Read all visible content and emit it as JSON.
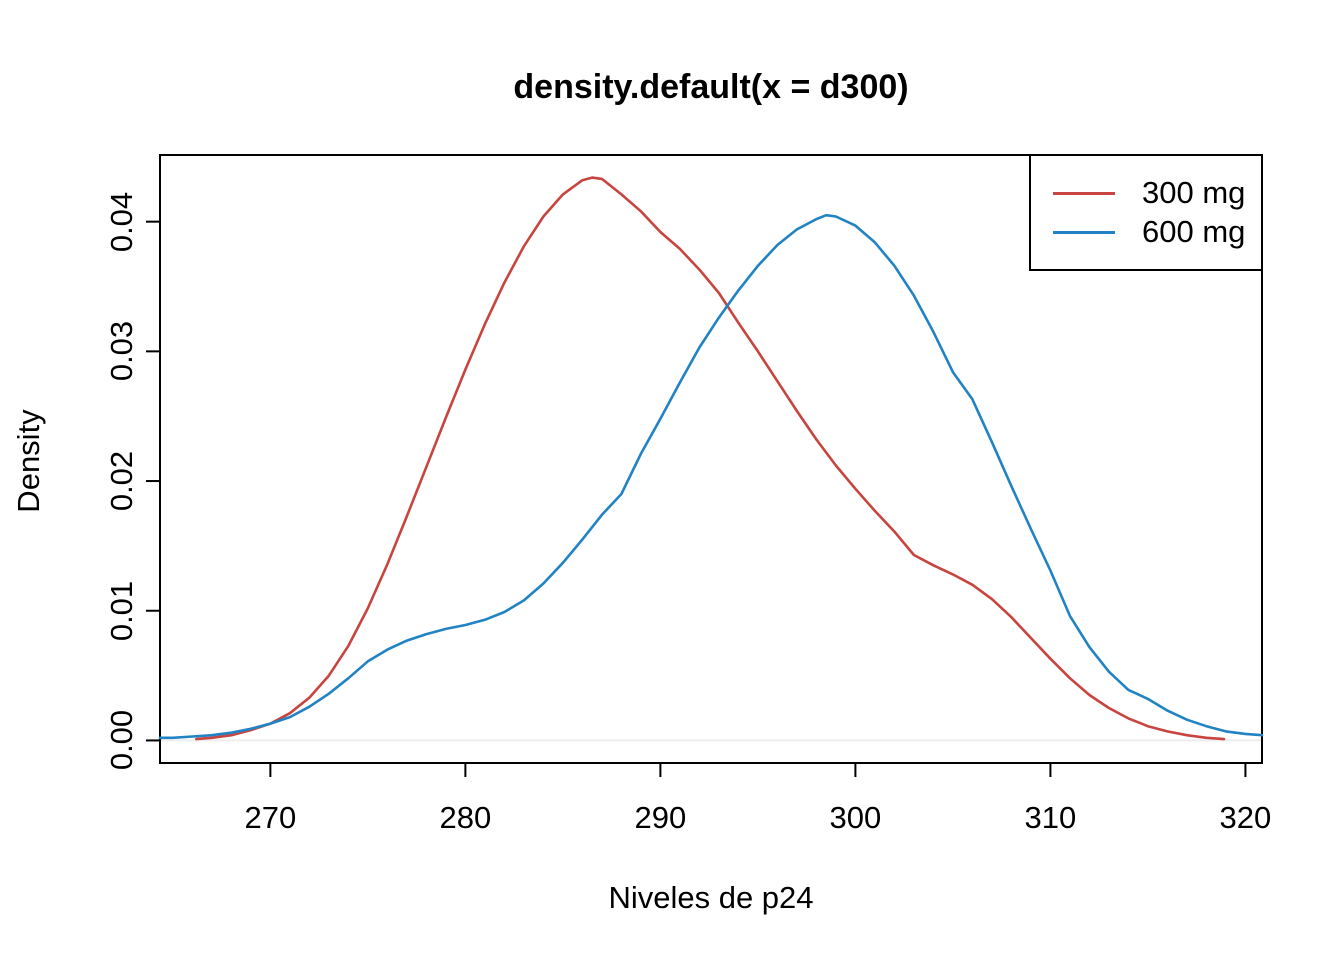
{
  "window": {
    "background": "#ffffff",
    "text_color": "#000000"
  },
  "chart_data": {
    "type": "line",
    "title": "density.default(x = d300)",
    "xlabel": "Niveles de p24",
    "ylabel": "Density",
    "x_ticks": [
      "270",
      "280",
      "290",
      "300",
      "310",
      "320"
    ],
    "x_tick_values": [
      270,
      280,
      290,
      300,
      310,
      320
    ],
    "y_ticks": [
      "0.00",
      "0.01",
      "0.02",
      "0.03",
      "0.04"
    ],
    "y_tick_values": [
      0,
      0.01,
      0.02,
      0.03,
      0.04
    ],
    "xlim": [
      264.34,
      320.85
    ],
    "ylim": [
      -0.00174,
      0.04514
    ],
    "grid": false,
    "axis_color": "#000000",
    "baseline_color": "#eeeeee",
    "legend": {
      "position": "topright",
      "entries": [
        {
          "label": "300 mg",
          "color": "#c8443e"
        },
        {
          "label": "600 mg",
          "color": "#2183c4"
        }
      ]
    },
    "series": [
      {
        "name": "300 mg",
        "color": "#c8443e",
        "x": [
          266.2,
          267,
          268,
          269,
          270,
          271,
          272,
          273,
          274,
          275,
          276,
          277,
          278,
          279,
          280,
          281,
          282,
          283,
          284,
          285,
          286,
          286.5,
          287,
          288,
          289,
          290,
          291,
          292,
          293,
          294,
          295,
          296,
          297,
          298,
          299,
          300,
          301,
          302,
          303,
          304,
          305,
          306,
          307,
          308,
          309,
          310,
          311,
          312,
          313,
          314,
          315,
          316,
          317,
          318,
          318.9
        ],
        "y": [
          0.0001,
          0.0002,
          0.0004,
          0.0008,
          0.0013,
          0.0021,
          0.0033,
          0.005,
          0.0073,
          0.0102,
          0.0136,
          0.0173,
          0.0211,
          0.0249,
          0.0286,
          0.0321,
          0.0353,
          0.0381,
          0.0404,
          0.0421,
          0.0432,
          0.0434,
          0.0433,
          0.0421,
          0.0408,
          0.0392,
          0.0379,
          0.0363,
          0.0345,
          0.0322,
          0.03,
          0.0277,
          0.0254,
          0.0232,
          0.0212,
          0.0194,
          0.0177,
          0.0161,
          0.0143,
          0.0135,
          0.0128,
          0.012,
          0.0109,
          0.0095,
          0.0079,
          0.0063,
          0.0048,
          0.0035,
          0.0025,
          0.0017,
          0.0011,
          0.0007,
          0.0004,
          0.0002,
          0.0001
        ]
      },
      {
        "name": "600 mg",
        "color": "#2183c4",
        "x": [
          264.34,
          265,
          266,
          267,
          268,
          269,
          270,
          271,
          272,
          273,
          274,
          275,
          276,
          277,
          278,
          279,
          280,
          281,
          282,
          283,
          284,
          285,
          286,
          287,
          288,
          289,
          290,
          291,
          292,
          293,
          294,
          295,
          296,
          297,
          298,
          298.5,
          299,
          300,
          301,
          302,
          303,
          304,
          305,
          306,
          307,
          308,
          309,
          310,
          311,
          312,
          313,
          314,
          315,
          316,
          317,
          318,
          319,
          320,
          320.85
        ],
        "y": [
          0.0002,
          0.0002,
          0.0003,
          0.0004,
          0.0006,
          0.0009,
          0.0013,
          0.0018,
          0.0026,
          0.0036,
          0.0048,
          0.0061,
          0.007,
          0.0077,
          0.0082,
          0.0086,
          0.0089,
          0.0093,
          0.0099,
          0.0108,
          0.0121,
          0.0137,
          0.0155,
          0.0174,
          0.019,
          0.0221,
          0.0248,
          0.0276,
          0.0303,
          0.0326,
          0.0347,
          0.0366,
          0.0382,
          0.0394,
          0.0402,
          0.0405,
          0.0404,
          0.0397,
          0.0384,
          0.0366,
          0.0343,
          0.0315,
          0.0284,
          0.0263,
          0.023,
          0.0196,
          0.0163,
          0.0131,
          0.0096,
          0.0072,
          0.0053,
          0.0039,
          0.0032,
          0.0023,
          0.0016,
          0.0011,
          0.0007,
          0.0005,
          0.0004
        ]
      }
    ]
  }
}
